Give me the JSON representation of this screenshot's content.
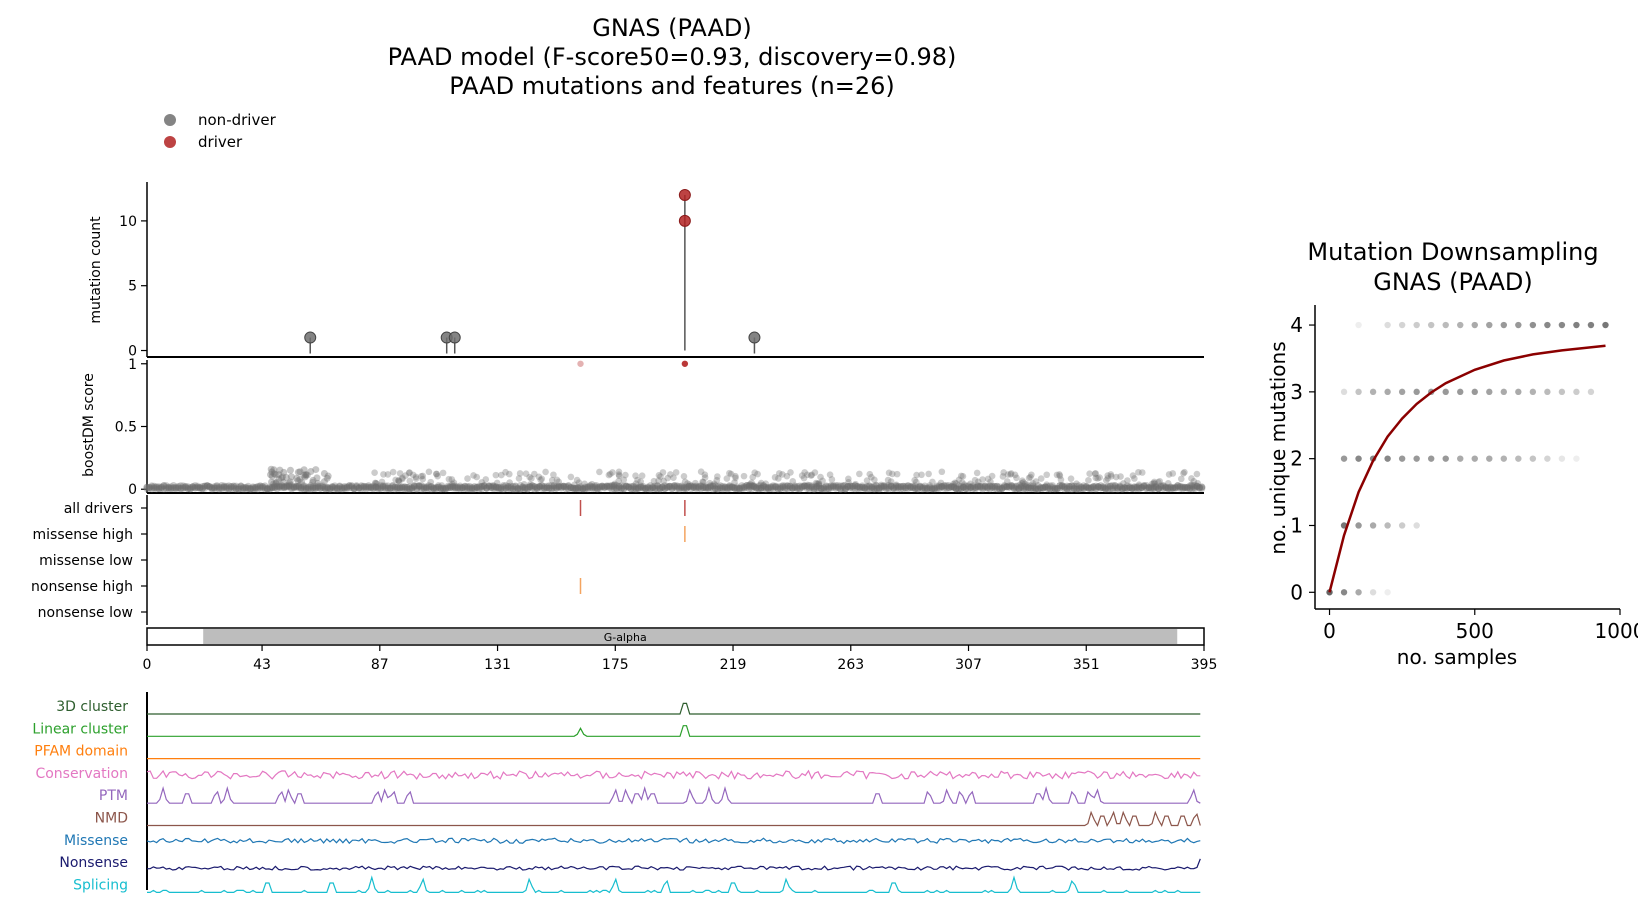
{
  "title_lines": [
    "GNAS (PAAD)",
    "PAAD model (F-score50=0.93, discovery=0.98)",
    "PAAD mutations and features (n=26)"
  ],
  "legend": [
    {
      "label": "non-driver",
      "color": "#6e6e6e"
    },
    {
      "label": "driver",
      "color": "#b22222"
    }
  ],
  "chart_data": [
    {
      "type": "scatter",
      "name": "mutation-count-lollipop",
      "ylabel": "mutation count",
      "yticks": [
        0,
        5,
        10
      ],
      "ylim": [
        -0.5,
        13
      ],
      "xlim": [
        0,
        395
      ],
      "points": [
        {
          "x": 61,
          "y": 1,
          "driver": false
        },
        {
          "x": 112,
          "y": 1,
          "driver": false
        },
        {
          "x": 115,
          "y": 1,
          "driver": false
        },
        {
          "x": 227,
          "y": 1,
          "driver": false
        },
        {
          "x": 201,
          "y": 10,
          "driver": true
        },
        {
          "x": 201,
          "y": 12,
          "driver": true
        }
      ]
    },
    {
      "type": "scatter",
      "name": "boostdm-score",
      "ylabel": "boostDM score",
      "yticks": [
        "0",
        "0.5",
        "1"
      ],
      "ylim": [
        -0.03,
        1.03
      ],
      "xlim": [
        0,
        395
      ],
      "highlight_points": [
        {
          "x": 162,
          "y": 1,
          "driver": true,
          "faded": true
        },
        {
          "x": 201,
          "y": 1,
          "driver": true,
          "faded": false
        }
      ],
      "background_note": "most positions score near 0; raised cluster around positions 45-70 near 0.1-0.15; scattered points 0.05-0.15 from position 110 to 395"
    },
    {
      "type": "table",
      "name": "driver-tracks",
      "rows": [
        "all drivers",
        "missense high",
        "missense low",
        "nonsense high",
        "nonsense low"
      ],
      "marks": [
        {
          "row": "all drivers",
          "x": 162,
          "color": "#c0504d"
        },
        {
          "row": "all drivers",
          "x": 201,
          "color": "#c0504d"
        },
        {
          "row": "missense high",
          "x": 201,
          "color": "#f4a460"
        },
        {
          "row": "nonsense high",
          "x": 162,
          "color": "#f4a460"
        }
      ]
    },
    {
      "type": "bar",
      "name": "domain-track",
      "domains": [
        {
          "label": "G-alpha",
          "start": 21,
          "end": 385
        }
      ],
      "xticks": [
        "0",
        "43",
        "87",
        "131",
        "175",
        "219",
        "263",
        "307",
        "351",
        "395"
      ],
      "xlim": [
        0,
        395
      ]
    },
    {
      "type": "line",
      "name": "feature-tracks",
      "series": [
        {
          "name": "3D cluster",
          "color": "#2e5e2e",
          "peaks": [
            201
          ]
        },
        {
          "name": "Linear cluster",
          "color": "#2ca02c",
          "peaks": [
            162,
            201
          ]
        },
        {
          "name": "PFAM domain",
          "color": "#ff7f0e",
          "peaks": []
        },
        {
          "name": "Conservation",
          "color": "#e377c2",
          "peaks": []
        },
        {
          "name": "PTM",
          "color": "#9467bd",
          "peaks": [
            6,
            15,
            26,
            30,
            50,
            53,
            57,
            86,
            89,
            92,
            98,
            175,
            179,
            183,
            186,
            189,
            203,
            210,
            216,
            273,
            292,
            299,
            304,
            308,
            333,
            336,
            346,
            352,
            355,
            391
          ]
        },
        {
          "name": "NMD",
          "color": "#8c564b",
          "peaks": [
            353,
            357,
            361,
            365,
            369,
            377,
            381,
            387,
            392
          ]
        },
        {
          "name": "Missense",
          "color": "#1f77b4",
          "peaks": []
        },
        {
          "name": "Nonsense",
          "color": "#1a1a6e",
          "peaks": [
            394
          ]
        },
        {
          "name": "Splicing",
          "color": "#17becf",
          "peaks": [
            45,
            69,
            84,
            103,
            143,
            175,
            194,
            219,
            239,
            279,
            324,
            346
          ]
        }
      ]
    },
    {
      "type": "scatter",
      "name": "mutation-downsampling",
      "title": "Mutation Downsampling",
      "subtitle": "GNAS (PAAD)",
      "xlabel": "no. samples",
      "ylabel": "no. unique mutations",
      "xlim": [
        -50,
        1000
      ],
      "ylim": [
        -0.25,
        4.3
      ],
      "xticks": [
        0,
        500,
        1000
      ],
      "yticks": [
        0,
        1,
        2,
        3,
        4
      ],
      "curve_color": "#8b0000",
      "curve": [
        [
          0,
          0
        ],
        [
          50,
          0.85
        ],
        [
          100,
          1.5
        ],
        [
          150,
          1.97
        ],
        [
          200,
          2.33
        ],
        [
          250,
          2.6
        ],
        [
          300,
          2.82
        ],
        [
          350,
          2.99
        ],
        [
          400,
          3.13
        ],
        [
          500,
          3.33
        ],
        [
          600,
          3.47
        ],
        [
          700,
          3.56
        ],
        [
          800,
          3.62
        ],
        [
          950,
          3.69
        ]
      ],
      "points": [
        {
          "x": 0,
          "y": 0,
          "alpha": 0.9
        },
        {
          "x": 50,
          "y": 0,
          "alpha": 0.7
        },
        {
          "x": 100,
          "y": 0,
          "alpha": 0.5
        },
        {
          "x": 150,
          "y": 0,
          "alpha": 0.2
        },
        {
          "x": 200,
          "y": 0,
          "alpha": 0.1
        },
        {
          "x": 50,
          "y": 1,
          "alpha": 0.8
        },
        {
          "x": 100,
          "y": 1,
          "alpha": 0.6
        },
        {
          "x": 150,
          "y": 1,
          "alpha": 0.5
        },
        {
          "x": 200,
          "y": 1,
          "alpha": 0.4
        },
        {
          "x": 250,
          "y": 1,
          "alpha": 0.3
        },
        {
          "x": 300,
          "y": 1,
          "alpha": 0.2
        },
        {
          "x": 50,
          "y": 2,
          "alpha": 0.6
        },
        {
          "x": 100,
          "y": 2,
          "alpha": 0.7
        },
        {
          "x": 150,
          "y": 2,
          "alpha": 0.7
        },
        {
          "x": 200,
          "y": 2,
          "alpha": 0.7
        },
        {
          "x": 250,
          "y": 2,
          "alpha": 0.6
        },
        {
          "x": 300,
          "y": 2,
          "alpha": 0.6
        },
        {
          "x": 350,
          "y": 2,
          "alpha": 0.6
        },
        {
          "x": 400,
          "y": 2,
          "alpha": 0.6
        },
        {
          "x": 450,
          "y": 2,
          "alpha": 0.5
        },
        {
          "x": 500,
          "y": 2,
          "alpha": 0.5
        },
        {
          "x": 550,
          "y": 2,
          "alpha": 0.5
        },
        {
          "x": 600,
          "y": 2,
          "alpha": 0.45
        },
        {
          "x": 650,
          "y": 2,
          "alpha": 0.4
        },
        {
          "x": 700,
          "y": 2,
          "alpha": 0.35
        },
        {
          "x": 750,
          "y": 2,
          "alpha": 0.25
        },
        {
          "x": 800,
          "y": 2,
          "alpha": 0.15
        },
        {
          "x": 850,
          "y": 2,
          "alpha": 0.1
        },
        {
          "x": 50,
          "y": 3,
          "alpha": 0.2
        },
        {
          "x": 100,
          "y": 3,
          "alpha": 0.35
        },
        {
          "x": 150,
          "y": 3,
          "alpha": 0.45
        },
        {
          "x": 200,
          "y": 3,
          "alpha": 0.5
        },
        {
          "x": 250,
          "y": 3,
          "alpha": 0.55
        },
        {
          "x": 300,
          "y": 3,
          "alpha": 0.6
        },
        {
          "x": 350,
          "y": 3,
          "alpha": 0.6
        },
        {
          "x": 400,
          "y": 3,
          "alpha": 0.6
        },
        {
          "x": 450,
          "y": 3,
          "alpha": 0.6
        },
        {
          "x": 500,
          "y": 3,
          "alpha": 0.6
        },
        {
          "x": 550,
          "y": 3,
          "alpha": 0.55
        },
        {
          "x": 600,
          "y": 3,
          "alpha": 0.5
        },
        {
          "x": 650,
          "y": 3,
          "alpha": 0.5
        },
        {
          "x": 700,
          "y": 3,
          "alpha": 0.45
        },
        {
          "x": 750,
          "y": 3,
          "alpha": 0.4
        },
        {
          "x": 800,
          "y": 3,
          "alpha": 0.35
        },
        {
          "x": 850,
          "y": 3,
          "alpha": 0.3
        },
        {
          "x": 900,
          "y": 3,
          "alpha": 0.25
        },
        {
          "x": 100,
          "y": 4,
          "alpha": 0.1
        },
        {
          "x": 200,
          "y": 4,
          "alpha": 0.2
        },
        {
          "x": 250,
          "y": 4,
          "alpha": 0.25
        },
        {
          "x": 300,
          "y": 4,
          "alpha": 0.3
        },
        {
          "x": 350,
          "y": 4,
          "alpha": 0.35
        },
        {
          "x": 400,
          "y": 4,
          "alpha": 0.4
        },
        {
          "x": 450,
          "y": 4,
          "alpha": 0.45
        },
        {
          "x": 500,
          "y": 4,
          "alpha": 0.5
        },
        {
          "x": 550,
          "y": 4,
          "alpha": 0.55
        },
        {
          "x": 600,
          "y": 4,
          "alpha": 0.6
        },
        {
          "x": 650,
          "y": 4,
          "alpha": 0.6
        },
        {
          "x": 700,
          "y": 4,
          "alpha": 0.65
        },
        {
          "x": 750,
          "y": 4,
          "alpha": 0.7
        },
        {
          "x": 800,
          "y": 4,
          "alpha": 0.7
        },
        {
          "x": 850,
          "y": 4,
          "alpha": 0.75
        },
        {
          "x": 900,
          "y": 4,
          "alpha": 0.75
        },
        {
          "x": 950,
          "y": 4,
          "alpha": 0.8
        }
      ]
    }
  ]
}
